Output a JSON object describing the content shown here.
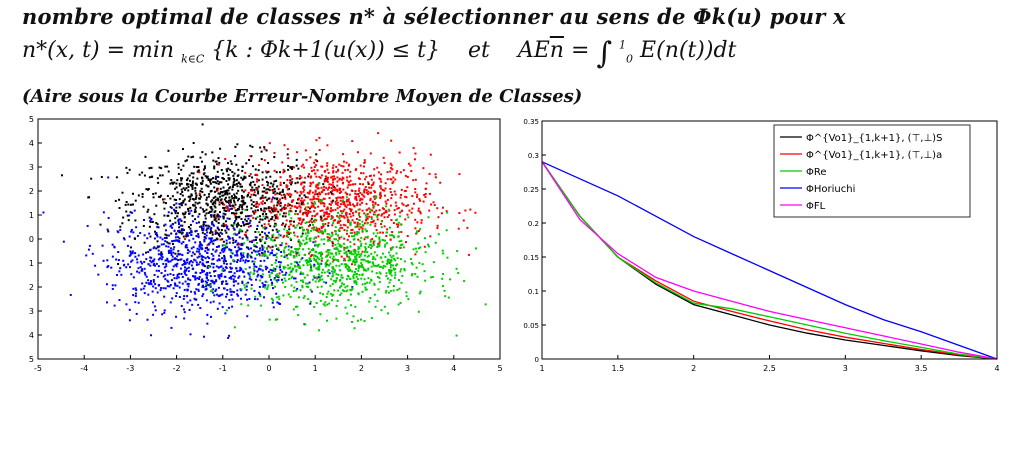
{
  "text": {
    "line1": "nombre optimal de classes n* à sélectionner au sens de Φk(u) pour x",
    "line2_left": "n*(x, t) = min",
    "line2_sub": "k∈C",
    "line2_brace": "{k : Φk+1(u(x)) ≤ t}",
    "line2_et": "et",
    "line2_right_a": "AE",
    "line2_right_nbar": "n",
    "line2_eq": "=",
    "line2_int_top": "1",
    "line2_int_bottom": "0",
    "line2_integrand": "E(n(t))dt",
    "line3": "(Aire sous la Courbe Erreur-Nombre Moyen de Classes)"
  },
  "chart_data": [
    {
      "type": "scatter",
      "xlim": [
        -5,
        5
      ],
      "ylim": [
        -5,
        5
      ],
      "xticks": [
        "-5",
        "-4",
        "-3",
        "-2",
        "-1",
        "0",
        "1",
        "2",
        "3",
        "4",
        "5"
      ],
      "yticks": [
        "5",
        "4",
        "3",
        "2",
        "1",
        "0",
        "1",
        "2",
        "3",
        "4",
        "5"
      ],
      "grid": false,
      "series": [
        {
          "color": "#000000",
          "center": [
            -1.0,
            1.5
          ],
          "spread": [
            1.0,
            1.0
          ],
          "count": 900
        },
        {
          "color": "#ff0000",
          "center": [
            1.5,
            1.5
          ],
          "spread": [
            1.0,
            1.0
          ],
          "count": 900
        },
        {
          "color": "#0000ff",
          "center": [
            -1.5,
            -1.0
          ],
          "spread": [
            1.0,
            1.0
          ],
          "count": 900
        },
        {
          "color": "#00cc00",
          "center": [
            1.5,
            -1.0
          ],
          "spread": [
            1.0,
            1.0
          ],
          "count": 900
        }
      ]
    },
    {
      "type": "line",
      "xlim": [
        1,
        4
      ],
      "ylim": [
        0,
        0.35
      ],
      "xticks": [
        "1",
        "1.5",
        "2",
        "2.5",
        "3",
        "3.5",
        "4"
      ],
      "yticks": [
        "0",
        "0.05",
        "0.1",
        "0.15",
        "0.2",
        "0.25",
        "0.3",
        "0.35"
      ],
      "legend_position": "top-right",
      "series": [
        {
          "name": "Φ^{Vo1}_{1,k+1}, (⊤,⊥)S",
          "color": "#000000",
          "x": [
            1,
            1.25,
            1.5,
            1.75,
            2,
            2.25,
            2.5,
            2.75,
            3,
            3.25,
            3.5,
            3.75,
            4
          ],
          "y": [
            0.29,
            0.21,
            0.15,
            0.11,
            0.08,
            0.065,
            0.05,
            0.038,
            0.028,
            0.02,
            0.012,
            0.005,
            0.0
          ]
        },
        {
          "name": "Φ^{Vo1}_{1,k+1}, (⊤,⊥)a",
          "color": "#ff0000",
          "x": [
            1,
            1.25,
            1.5,
            1.75,
            2,
            2.25,
            2.5,
            2.75,
            3,
            3.25,
            3.5,
            3.75,
            4
          ],
          "y": [
            0.29,
            0.21,
            0.15,
            0.115,
            0.085,
            0.07,
            0.056,
            0.043,
            0.032,
            0.023,
            0.014,
            0.006,
            0.0
          ]
        },
        {
          "name": "ΦRe",
          "color": "#00cc00",
          "x": [
            1,
            1.25,
            1.5,
            1.75,
            2,
            2.25,
            2.5,
            2.75,
            3,
            3.25,
            3.5,
            3.75,
            4
          ],
          "y": [
            0.29,
            0.21,
            0.15,
            0.112,
            0.082,
            0.074,
            0.062,
            0.05,
            0.038,
            0.027,
            0.017,
            0.007,
            0.0
          ]
        },
        {
          "name": "ΦHoriuchi",
          "color": "#0000ff",
          "x": [
            1,
            1.25,
            1.5,
            1.75,
            2,
            2.25,
            2.5,
            2.75,
            3,
            3.25,
            3.5,
            3.75,
            4
          ],
          "y": [
            0.29,
            0.265,
            0.24,
            0.21,
            0.18,
            0.155,
            0.13,
            0.105,
            0.08,
            0.058,
            0.04,
            0.02,
            0.0
          ]
        },
        {
          "name": "ΦFL",
          "color": "#ff00ff",
          "x": [
            1,
            1.25,
            1.5,
            1.75,
            2,
            2.25,
            2.5,
            2.75,
            3,
            3.25,
            3.5,
            3.75,
            4
          ],
          "y": [
            0.29,
            0.205,
            0.155,
            0.12,
            0.1,
            0.085,
            0.07,
            0.058,
            0.046,
            0.034,
            0.022,
            0.01,
            0.0
          ]
        }
      ]
    }
  ]
}
